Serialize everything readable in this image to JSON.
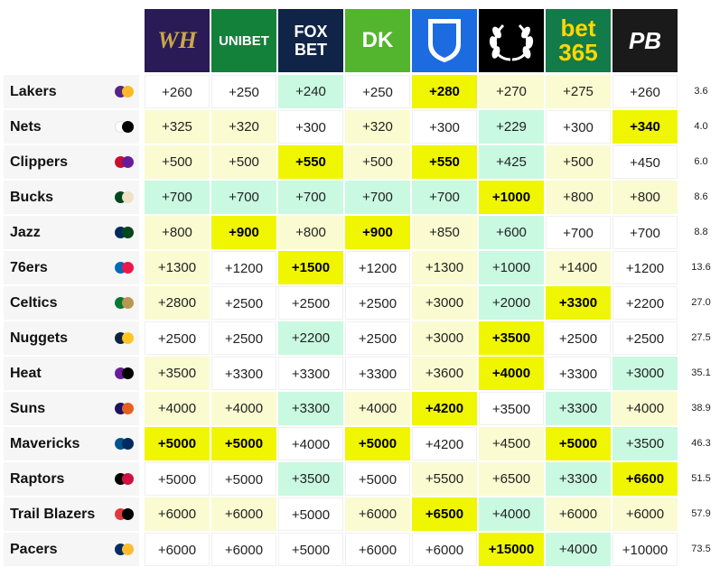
{
  "colors": {
    "best": "#f0f500",
    "good": "#c9f9e1",
    "mid": "#fafbd0",
    "plain": "#ffffff"
  },
  "sportsbooks": [
    {
      "name": "wynnbet",
      "logo_text": "WH",
      "bg": "#2a1a55",
      "fg": "#c9a84a"
    },
    {
      "name": "unibet",
      "logo_text": "UNIBET",
      "bg": "#14813b",
      "fg": "#ffffff"
    },
    {
      "name": "foxbet",
      "logo_text": "FOX BET",
      "bg": "#102447",
      "fg": "#ffffff"
    },
    {
      "name": "draftkings",
      "logo_text": "DK",
      "bg": "#53b52d",
      "fg": "#ffffff"
    },
    {
      "name": "fanduel",
      "logo_text": "FD",
      "bg": "#1c6be0",
      "fg": "#ffffff"
    },
    {
      "name": "caesars",
      "logo_text": "",
      "bg": "#000000",
      "fg": "#ffffff"
    },
    {
      "name": "bet365",
      "logo_text": "bet 365",
      "bg": "#137a4a",
      "fg": "#ffd800"
    },
    {
      "name": "pointsbet",
      "logo_text": "PB",
      "bg": "#1a1a1a",
      "fg": "#ffffff"
    }
  ],
  "rows": [
    {
      "team": "Lakers",
      "colors": [
        "#552583",
        "#fdb927"
      ],
      "prob": "3.6",
      "odds": [
        "+260",
        "+250",
        "+240",
        "+250",
        "+280",
        "+270",
        "+275",
        "+260"
      ],
      "styles": [
        "white",
        "white",
        "green",
        "white",
        "best",
        "yellow",
        "yellow",
        "white"
      ]
    },
    {
      "team": "Nets",
      "colors": [
        "#ffffff",
        "#000000"
      ],
      "prob": "4.0",
      "odds": [
        "+325",
        "+320",
        "+300",
        "+320",
        "+300",
        "+229",
        "+300",
        "+340"
      ],
      "styles": [
        "yellow",
        "yellow",
        "white",
        "yellow",
        "white",
        "green",
        "white",
        "best"
      ]
    },
    {
      "team": "Clippers",
      "colors": [
        "#c8102e",
        "#6a1b9a"
      ],
      "prob": "6.0",
      "odds": [
        "+500",
        "+500",
        "+550",
        "+500",
        "+550",
        "+425",
        "+500",
        "+450"
      ],
      "styles": [
        "yellow",
        "yellow",
        "best",
        "yellow",
        "best",
        "green",
        "yellow",
        "white"
      ]
    },
    {
      "team": "Bucks",
      "colors": [
        "#00471b",
        "#eee1c6"
      ],
      "prob": "8.6",
      "odds": [
        "+700",
        "+700",
        "+700",
        "+700",
        "+700",
        "+1000",
        "+800",
        "+800"
      ],
      "styles": [
        "green",
        "green",
        "green",
        "green",
        "green",
        "best",
        "yellow",
        "yellow"
      ]
    },
    {
      "team": "Jazz",
      "colors": [
        "#002b5c",
        "#00471b"
      ],
      "prob": "8.8",
      "odds": [
        "+800",
        "+900",
        "+800",
        "+900",
        "+850",
        "+600",
        "+700",
        "+700"
      ],
      "styles": [
        "yellow",
        "best",
        "yellow",
        "best",
        "yellow",
        "green",
        "white",
        "white"
      ]
    },
    {
      "team": "76ers",
      "colors": [
        "#006bb6",
        "#ed174c"
      ],
      "prob": "13.6",
      "odds": [
        "+1300",
        "+1200",
        "+1500",
        "+1200",
        "+1300",
        "+1000",
        "+1400",
        "+1200"
      ],
      "styles": [
        "yellow",
        "white",
        "best",
        "white",
        "yellow",
        "green",
        "yellow",
        "white"
      ]
    },
    {
      "team": "Celtics",
      "colors": [
        "#007a33",
        "#ba9653"
      ],
      "prob": "27.0",
      "odds": [
        "+2800",
        "+2500",
        "+2500",
        "+2500",
        "+3000",
        "+2000",
        "+3300",
        "+2200"
      ],
      "styles": [
        "yellow",
        "white",
        "white",
        "white",
        "yellow",
        "green",
        "best",
        "white"
      ]
    },
    {
      "team": "Nuggets",
      "colors": [
        "#0e2240",
        "#fec524"
      ],
      "prob": "27.5",
      "odds": [
        "+2500",
        "+2500",
        "+2200",
        "+2500",
        "+3000",
        "+3500",
        "+2500",
        "+2500"
      ],
      "styles": [
        "white",
        "white",
        "green",
        "white",
        "yellow",
        "best",
        "white",
        "white"
      ]
    },
    {
      "team": "Heat",
      "colors": [
        "#6a1b9a",
        "#000000"
      ],
      "prob": "35.1",
      "odds": [
        "+3500",
        "+3300",
        "+3300",
        "+3300",
        "+3600",
        "+4000",
        "+3300",
        "+3000"
      ],
      "styles": [
        "yellow",
        "white",
        "white",
        "white",
        "yellow",
        "best",
        "white",
        "green"
      ]
    },
    {
      "team": "Suns",
      "colors": [
        "#1d1160",
        "#e56020"
      ],
      "prob": "38.9",
      "odds": [
        "+4000",
        "+4000",
        "+3300",
        "+4000",
        "+4200",
        "+3500",
        "+3300",
        "+4000"
      ],
      "styles": [
        "yellow",
        "yellow",
        "green",
        "yellow",
        "best",
        "white",
        "green",
        "yellow"
      ]
    },
    {
      "team": "Mavericks",
      "colors": [
        "#00538c",
        "#002b5e"
      ],
      "prob": "46.3",
      "odds": [
        "+5000",
        "+5000",
        "+4000",
        "+5000",
        "+4200",
        "+4500",
        "+5000",
        "+3500"
      ],
      "styles": [
        "best",
        "best",
        "white",
        "best",
        "white",
        "yellow",
        "best",
        "green"
      ]
    },
    {
      "team": "Raptors",
      "colors": [
        "#000000",
        "#ce1141"
      ],
      "prob": "51.5",
      "odds": [
        "+5000",
        "+5000",
        "+3500",
        "+5000",
        "+5500",
        "+6500",
        "+3300",
        "+6600"
      ],
      "styles": [
        "white",
        "white",
        "green",
        "white",
        "yellow",
        "yellow",
        "green",
        "best"
      ]
    },
    {
      "team": "Trail Blazers",
      "colors": [
        "#e03a3e",
        "#000000"
      ],
      "prob": "57.9",
      "odds": [
        "+6000",
        "+6000",
        "+5000",
        "+6000",
        "+6500",
        "+4000",
        "+6000",
        "+6000"
      ],
      "styles": [
        "yellow",
        "yellow",
        "white",
        "yellow",
        "best",
        "green",
        "yellow",
        "yellow"
      ]
    },
    {
      "team": "Pacers",
      "colors": [
        "#002d62",
        "#fdbb30"
      ],
      "prob": "73.5",
      "odds": [
        "+6000",
        "+6000",
        "+5000",
        "+6000",
        "+6000",
        "+15000",
        "+4000",
        "+10000"
      ],
      "styles": [
        "white",
        "white",
        "white",
        "white",
        "white",
        "best",
        "green",
        "white"
      ]
    }
  ]
}
